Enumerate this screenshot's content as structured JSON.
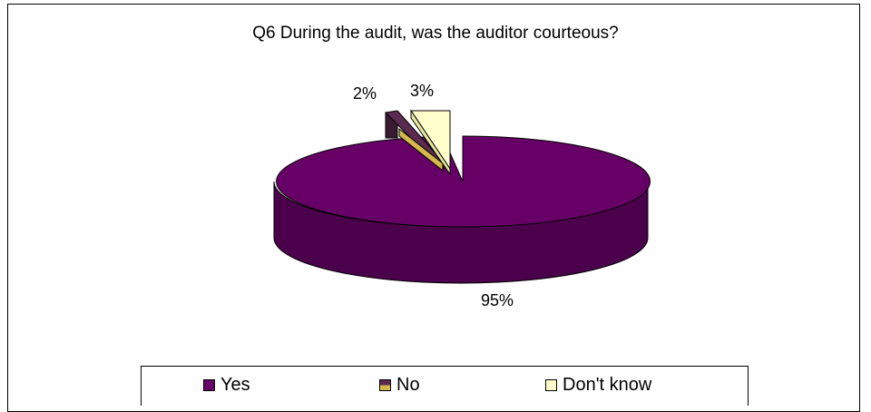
{
  "chart_data": {
    "type": "pie",
    "title": "Q6 During the audit, was the auditor courteous?",
    "categories": [
      "Yes",
      "No",
      "Don't know"
    ],
    "values": [
      95,
      2,
      3
    ],
    "data_labels": [
      "95%",
      "2%",
      "3%"
    ],
    "colors": [
      "#660066",
      "#d4b84a",
      "#ffffcc"
    ],
    "legend": "bottom",
    "style": "3d-exploded"
  }
}
